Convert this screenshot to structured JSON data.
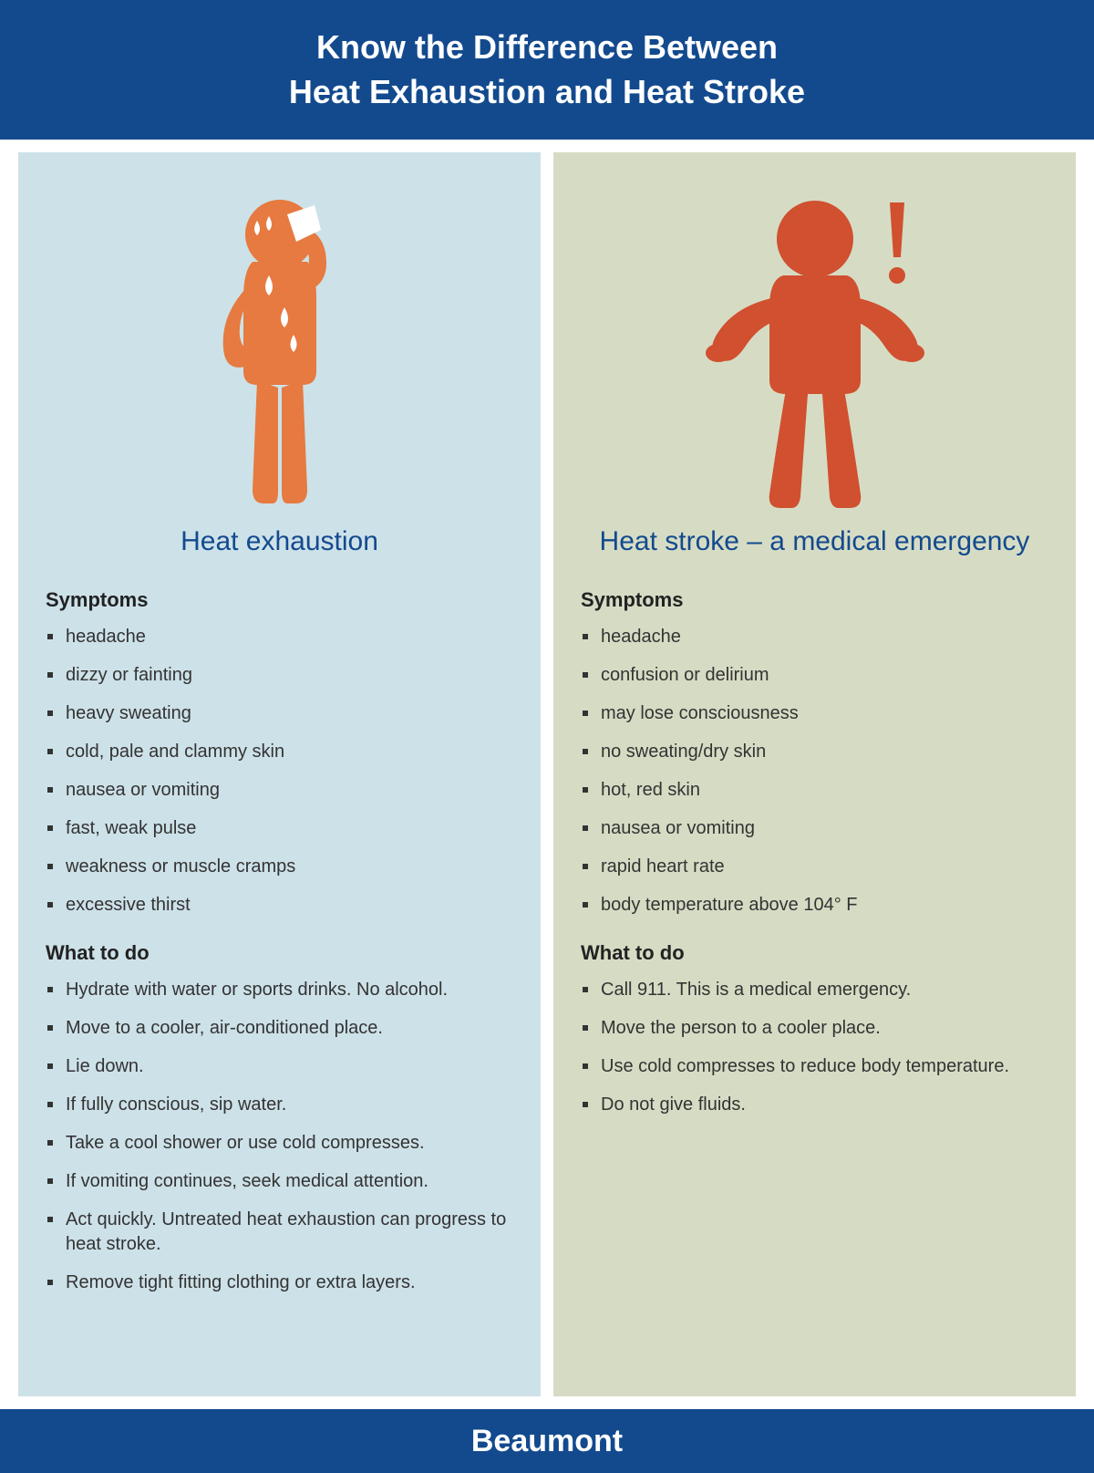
{
  "header": {
    "line1": "Know the Difference Between",
    "line2": "Heat Exhaustion and Heat Stroke"
  },
  "colors": {
    "brand_blue": "#134a8e",
    "left_bg": "#cde1e8",
    "right_bg": "#d6dcc4",
    "figure_orange": "#e67a40",
    "figure_dark_orange": "#d0502f",
    "sweat_white": "#ffffff"
  },
  "left": {
    "title": "Heat exhaustion",
    "symptoms_h": "Symptoms",
    "symptoms": [
      "headache",
      "dizzy or fainting",
      "heavy sweating",
      "cold, pale and clammy skin",
      "nausea or vomiting",
      "fast, weak pulse",
      "weakness or muscle cramps",
      "excessive thirst"
    ],
    "whattodo_h": "What to do",
    "whattodo": [
      "Hydrate with water or sports drinks. No alcohol.",
      "Move to a cooler, air-conditioned place.",
      "Lie down.",
      "If fully conscious, sip water.",
      "Take a cool shower or use cold compresses.",
      "If vomiting continues, seek medical attention.",
      "Act quickly. Untreated heat exhaustion can progress to heat stroke.",
      "Remove tight fitting clothing or extra layers."
    ]
  },
  "right": {
    "title": "Heat stroke – a medical emergency",
    "symptoms_h": "Symptoms",
    "symptoms": [
      "headache",
      "confusion or delirium",
      "may lose consciousness",
      "no sweating/dry skin",
      "hot, red skin",
      "nausea or vomiting",
      "rapid heart rate",
      "body temperature above 104° F"
    ],
    "whattodo_h": "What to do",
    "whattodo": [
      "Call 911. This is a medical emergency.",
      "Move the person to a cooler place.",
      "Use cold compresses to reduce body temperature.",
      "Do not give fluids."
    ]
  },
  "footer": {
    "brand": "Beaumont"
  }
}
